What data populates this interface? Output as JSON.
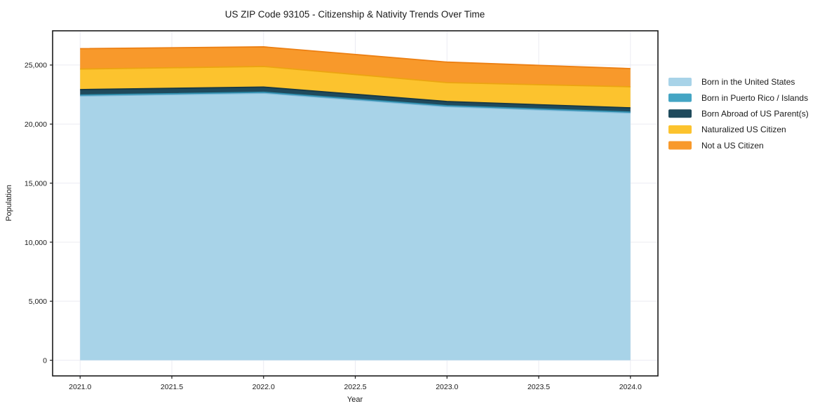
{
  "page": {
    "background": "#ffffff"
  },
  "chart_data": {
    "type": "area",
    "stacked": true,
    "title": "US ZIP Code 93105 - Citizenship & Nativity Trends Over Time",
    "xlabel": "Year",
    "ylabel": "Population",
    "x": [
      2021,
      2022,
      2023,
      2024
    ],
    "xlim": [
      2020.85,
      2024.15
    ],
    "ylim": [
      -1325,
      27900
    ],
    "xticks": [
      2021.0,
      2021.5,
      2022.0,
      2022.5,
      2023.0,
      2023.5,
      2024.0
    ],
    "xtick_labels": [
      "2021.0",
      "2021.5",
      "2022.0",
      "2022.5",
      "2023.0",
      "2023.5",
      "2024.0"
    ],
    "yticks": [
      0,
      5000,
      10000,
      15000,
      20000,
      25000
    ],
    "ytick_labels": [
      "0",
      "5,000",
      "10,000",
      "15,000",
      "20,000",
      "25,000"
    ],
    "grid": true,
    "grid_color": "#ebebf2",
    "axis_color": "#1b1b1b",
    "text_color": "#1a1a1a",
    "legend_position": "right-outside",
    "series": [
      {
        "name": "Born in the United States",
        "color": "#a8d3e8",
        "edge_color": "#7cb8d8",
        "values": [
          22380,
          22620,
          21475,
          20940
        ]
      },
      {
        "name": "Born in Puerto Rico / Islands",
        "color": "#44a5c4",
        "edge_color": "#2d8cab",
        "values": [
          80,
          80,
          80,
          80
        ]
      },
      {
        "name": "Born Abroad of US Parent(s)",
        "color": "#1f4a5c",
        "edge_color": "#173845",
        "values": [
          460,
          435,
          355,
          355
        ]
      },
      {
        "name": "Naturalized US Citizen",
        "color": "#fcc32e",
        "edge_color": "#eca511",
        "values": [
          1740,
          1745,
          1605,
          1785
        ]
      },
      {
        "name": "Not a US Citizen",
        "color": "#f8992b",
        "edge_color": "#ec7f12",
        "values": [
          1730,
          1660,
          1735,
          1540
        ]
      }
    ],
    "stack_totals": [
      26390,
      26540,
      25250,
      24700
    ]
  }
}
